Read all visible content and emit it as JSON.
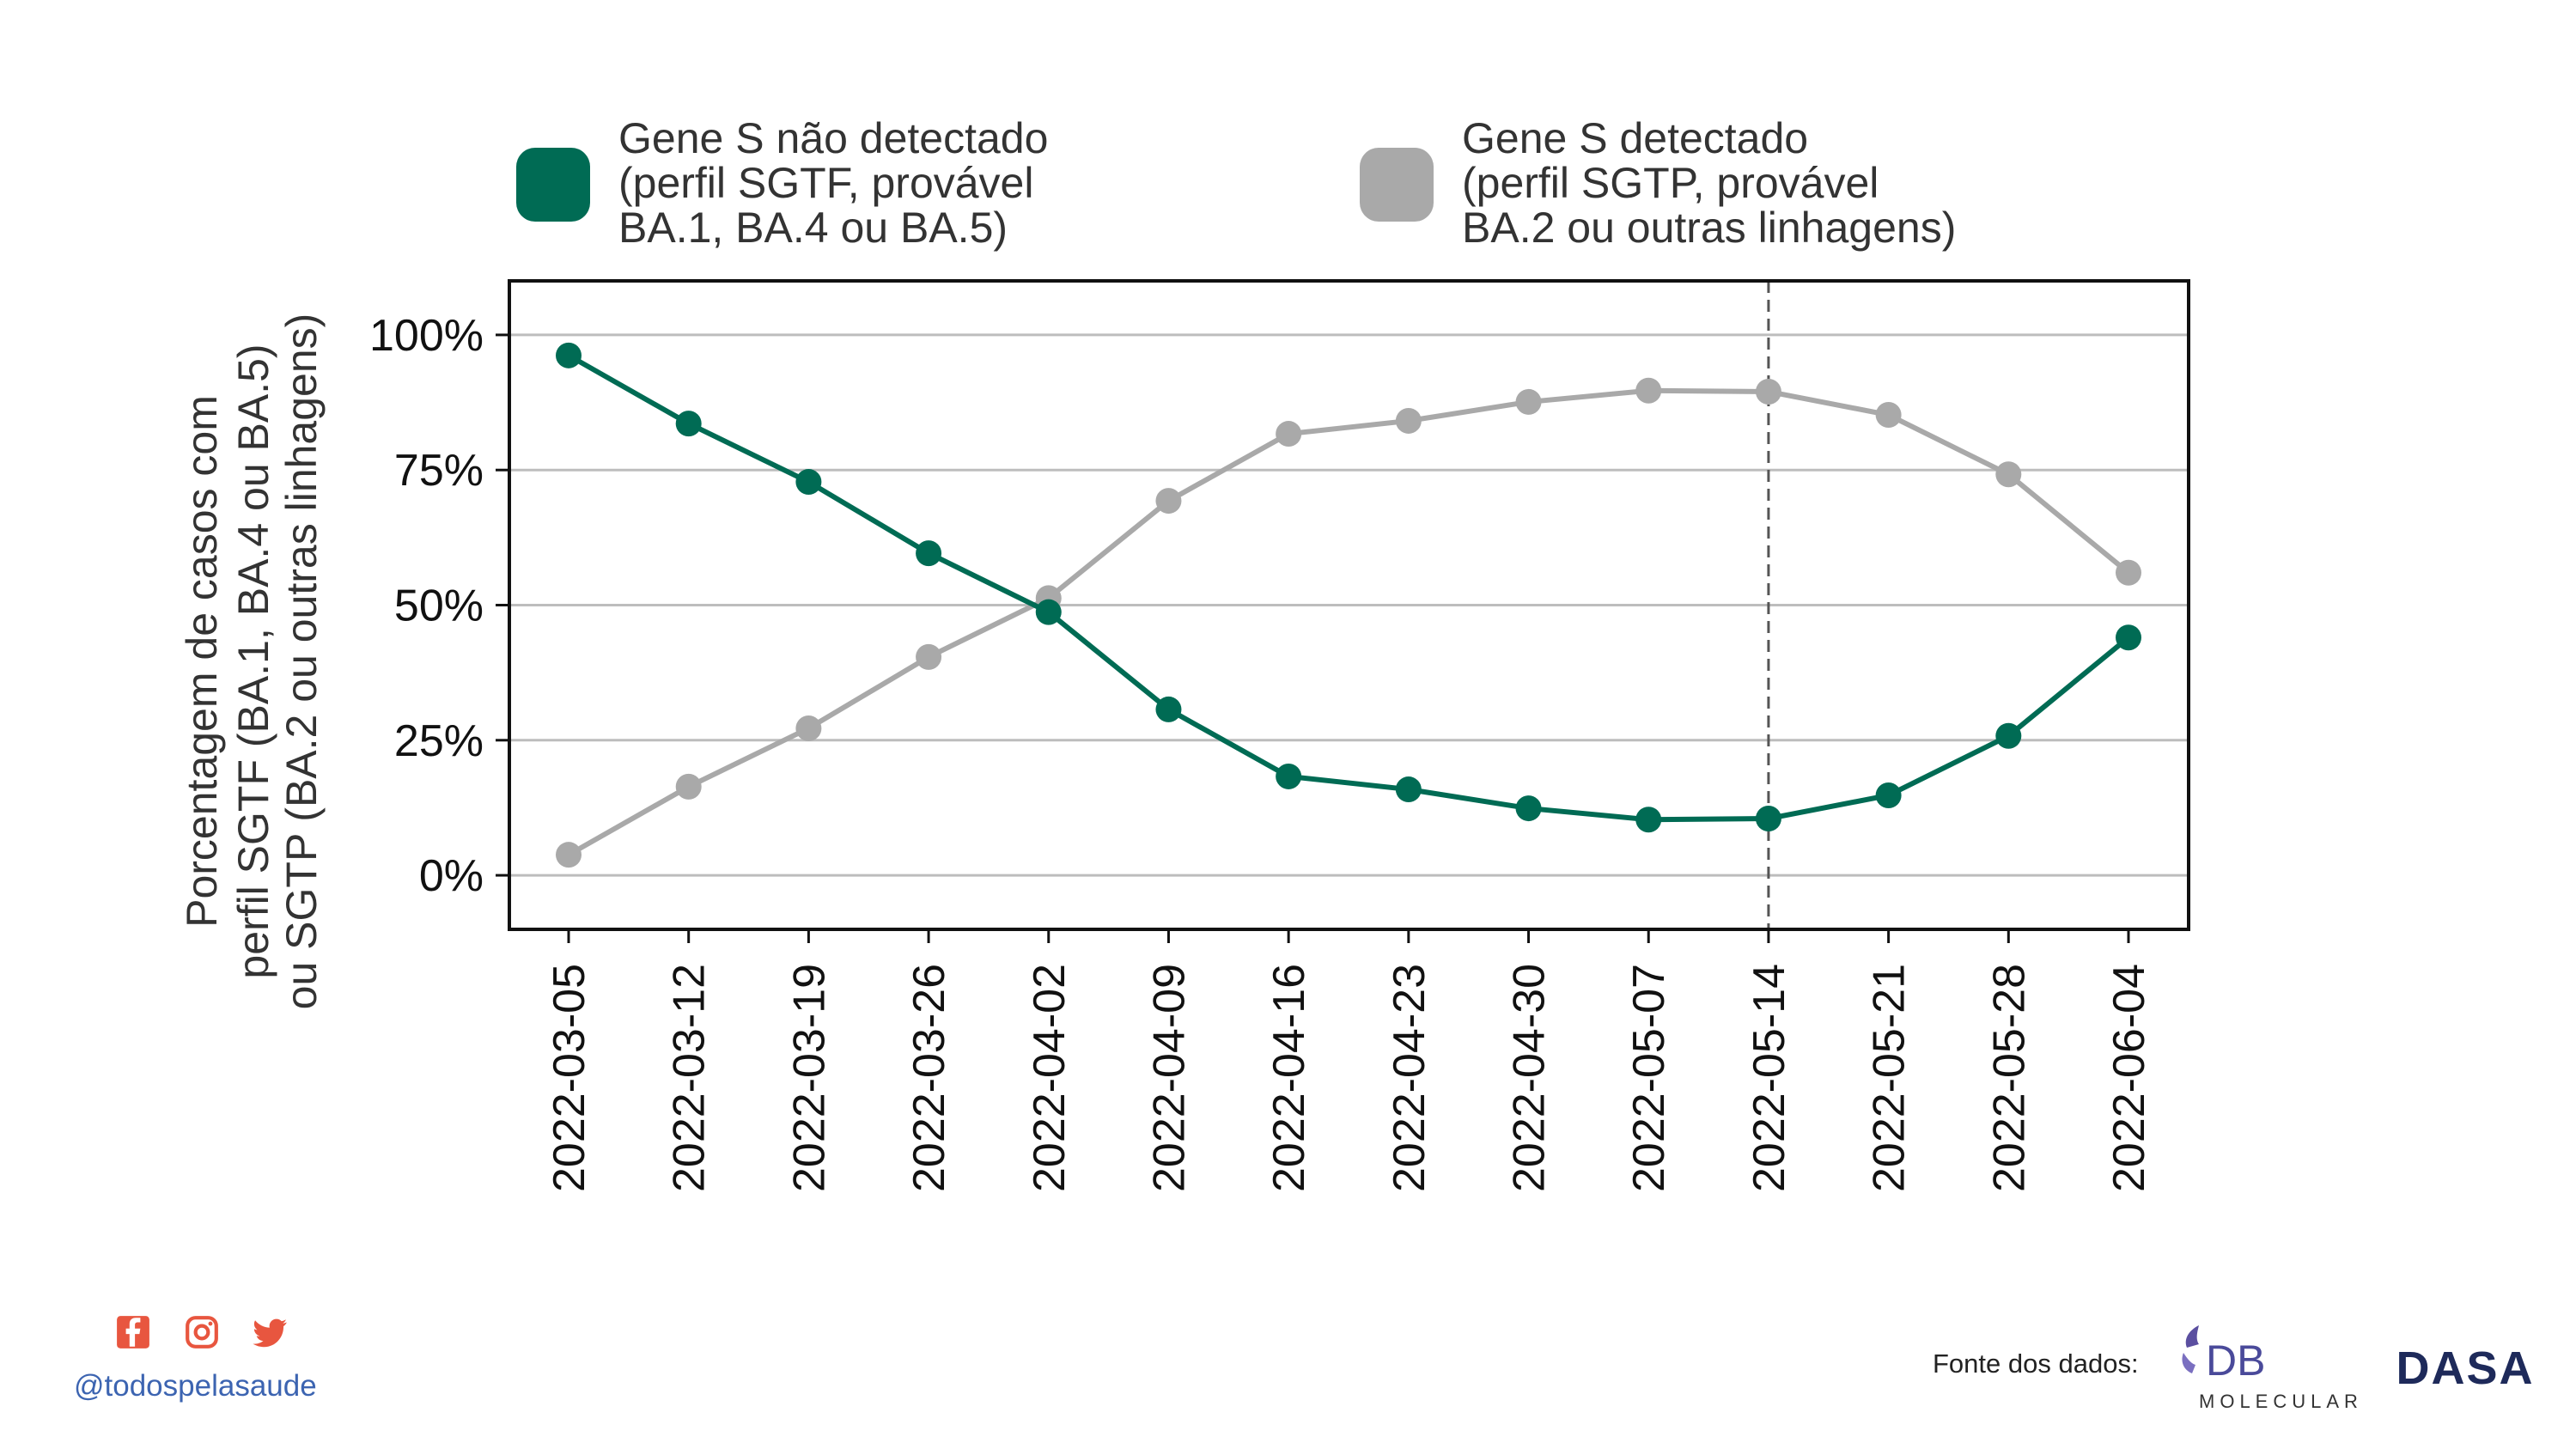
{
  "chart_data": {
    "type": "line",
    "x": [
      "2022-03-05",
      "2022-03-12",
      "2022-03-19",
      "2022-03-26",
      "2022-04-02",
      "2022-04-09",
      "2022-04-16",
      "2022-04-23",
      "2022-04-30",
      "2022-05-07",
      "2022-05-14",
      "2022-05-21",
      "2022-05-28",
      "2022-06-04"
    ],
    "series": [
      {
        "name_lines": [
          "Gene S não detectado",
          "(perfil SGTF, provável",
          "BA.1, BA.4 ou BA.5)"
        ],
        "color": "#006b54",
        "values": [
          96.2,
          83.6,
          72.8,
          59.6,
          48.7,
          30.7,
          18.3,
          15.9,
          12.4,
          10.3,
          10.5,
          14.8,
          25.8,
          44.0
        ]
      },
      {
        "name_lines": [
          "Gene S detectado",
          "(perfil SGTP, provável",
          "BA.2 ou outras linhagens)"
        ],
        "color": "#a9a9a9",
        "values": [
          3.8,
          16.4,
          27.2,
          40.4,
          51.3,
          69.3,
          81.7,
          84.1,
          87.6,
          89.7,
          89.5,
          85.2,
          74.2,
          56.0
        ]
      }
    ],
    "ylabel_lines": [
      "Porcentagem de casos com",
      "perfil SGTF (BA.1, BA.4 ou BA.5)",
      "ou SGTP (BA.2 ou outras linhagens)"
    ],
    "yticks": [
      0,
      25,
      50,
      75,
      100
    ],
    "ytick_labels": [
      "0%",
      "25%",
      "50%",
      "75%",
      "100%"
    ],
    "ylim": [
      -10,
      110
    ],
    "grid": "horizontal",
    "legend_placement": "top",
    "marker_line_at": "2022-05-14"
  },
  "footer": {
    "social_icons": [
      "facebook-icon",
      "instagram-icon",
      "twitter-icon"
    ],
    "social_color": "#e8563f",
    "handle": "@todospelasaude",
    "source_label": "Fonte dos dados:",
    "logo_db_text": "DB",
    "logo_db_sub": "MOLECULAR",
    "logo_dasa_text": "DASA"
  }
}
